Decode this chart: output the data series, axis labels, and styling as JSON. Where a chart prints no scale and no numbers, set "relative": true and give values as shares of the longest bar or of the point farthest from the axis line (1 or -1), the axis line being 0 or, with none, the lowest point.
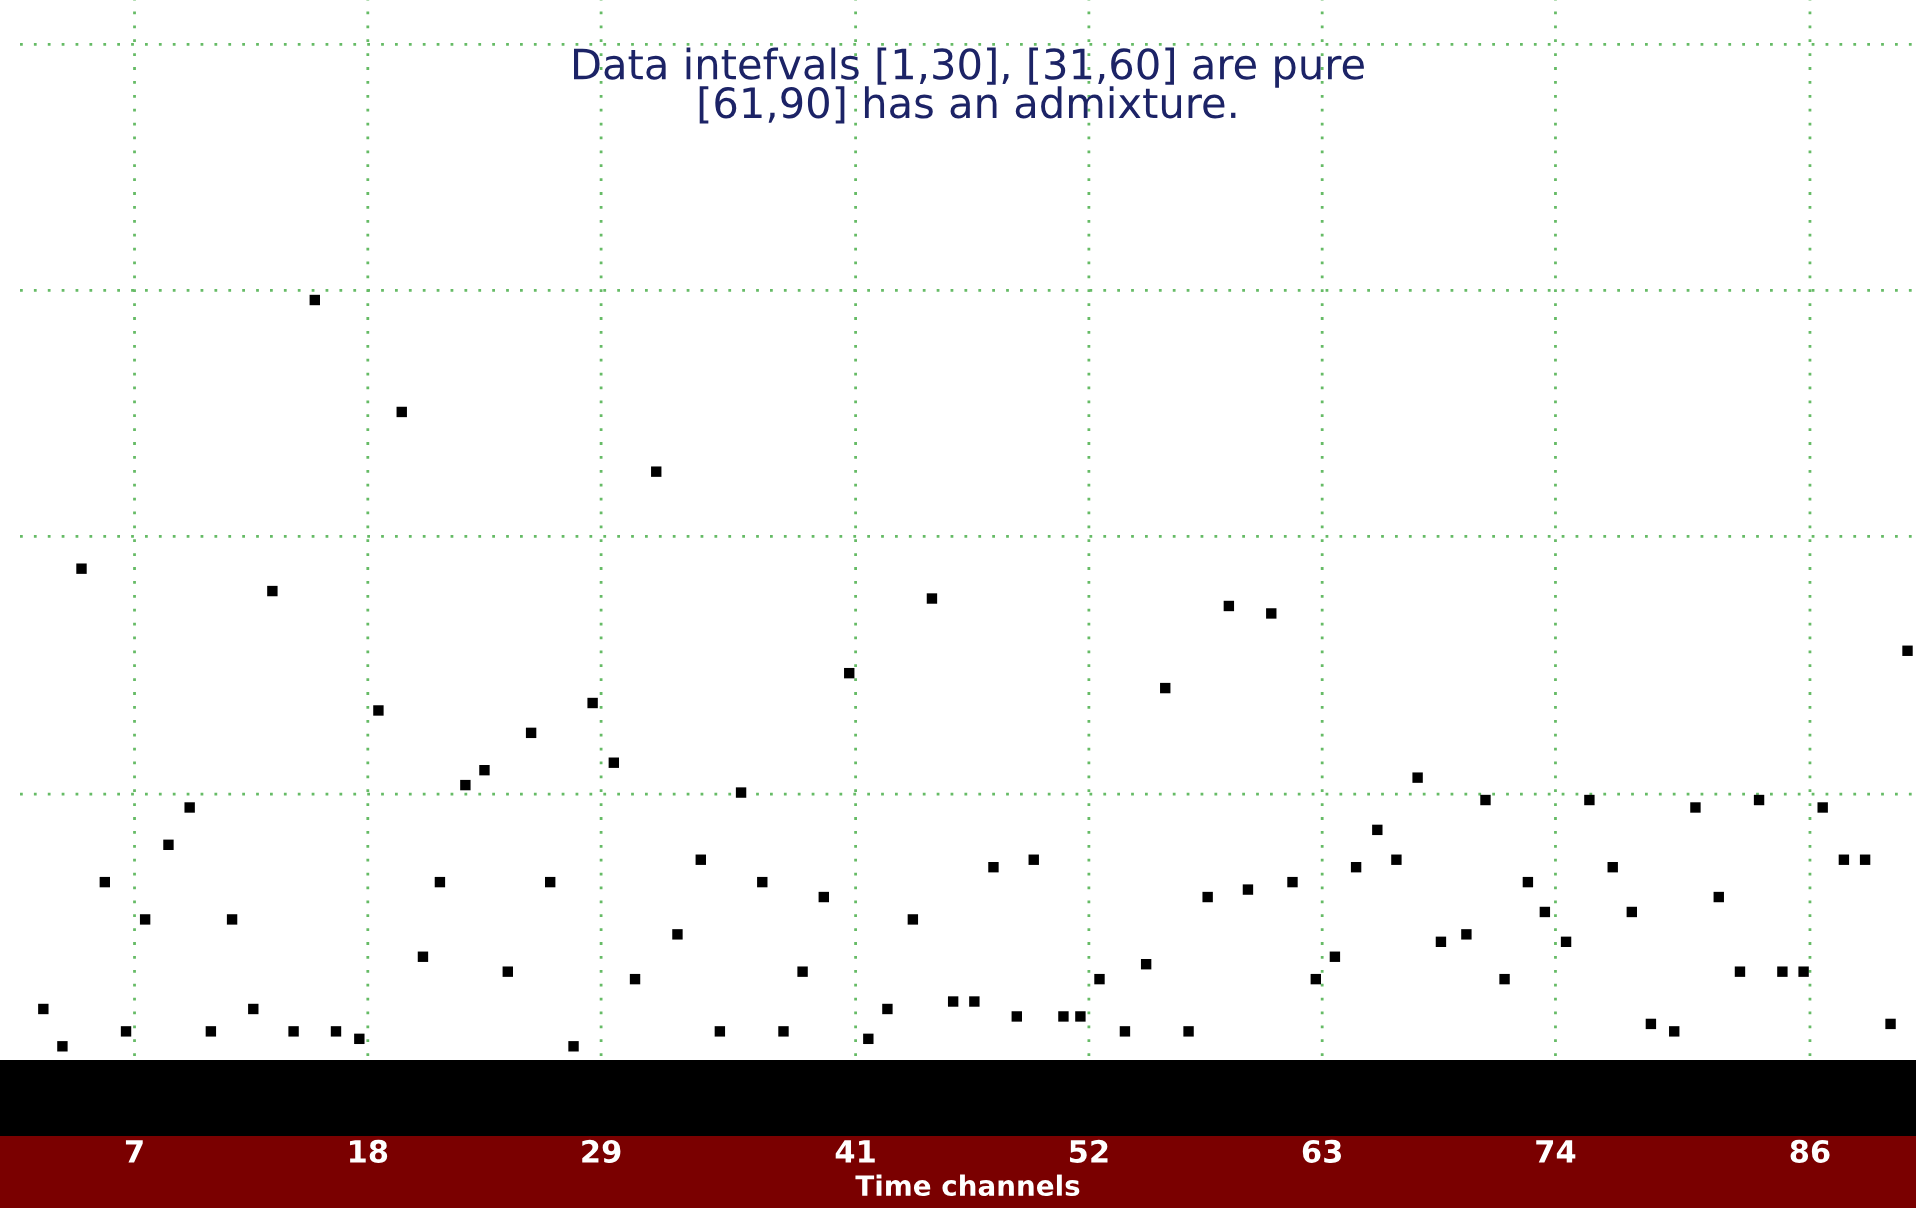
{
  "chart_data": {
    "type": "scatter",
    "title": "Data intefvals [1,30], [31,60] are pure\n[61,90] has an admixture.",
    "xlabel": "Time channels",
    "relative": true,
    "marker": "square",
    "grid": true,
    "xlim": [
      1.6,
      91.0
    ],
    "xticks": [
      7,
      18,
      29,
      41,
      52,
      63,
      74,
      86
    ],
    "x": [
      2.7,
      3.6,
      4.5,
      5.6,
      6.6,
      7.5,
      8.6,
      9.6,
      10.6,
      11.6,
      12.6,
      13.5,
      14.5,
      15.5,
      16.5,
      17.6,
      18.5,
      19.6,
      20.6,
      21.4,
      22.6,
      23.5,
      24.6,
      25.7,
      26.6,
      27.7,
      28.6,
      29.6,
      30.6,
      31.6,
      32.6,
      33.7,
      34.6,
      35.6,
      36.6,
      37.6,
      38.5,
      39.5,
      40.7,
      41.6,
      42.5,
      43.7,
      44.6,
      45.6,
      46.6,
      47.5,
      48.6,
      49.4,
      50.8,
      51.6,
      52.5,
      53.7,
      54.7,
      55.6,
      56.7,
      57.6,
      58.6,
      59.5,
      60.6,
      61.6,
      62.7,
      63.6,
      64.6,
      65.6,
      66.5,
      67.5,
      68.6,
      69.8,
      70.7,
      71.6,
      72.7,
      73.5,
      74.5,
      75.6,
      76.7,
      77.6,
      78.5,
      79.6,
      80.6,
      81.7,
      82.7,
      83.6,
      84.7,
      85.7,
      86.6,
      87.6,
      88.6,
      89.8,
      90.6
    ],
    "series": [
      {
        "color": "#000000",
        "values": [
          0.05,
          0.0,
          0.64,
          0.22,
          0.02,
          0.17,
          0.27,
          0.32,
          0.02,
          0.17,
          0.05,
          0.61,
          0.02,
          1.0,
          0.02,
          0.01,
          0.45,
          0.85,
          0.12,
          0.22,
          0.35,
          0.37,
          0.1,
          0.42,
          0.22,
          0.0,
          0.46,
          0.38,
          0.09,
          0.77,
          0.15,
          0.25,
          0.02,
          0.34,
          0.22,
          0.02,
          0.1,
          0.2,
          0.5,
          0.01,
          0.05,
          0.17,
          0.6,
          0.06,
          0.06,
          0.24,
          0.04,
          0.25,
          0.04,
          0.04,
          0.09,
          0.02,
          0.11,
          0.48,
          0.02,
          0.2,
          0.59,
          0.21,
          0.58,
          0.22,
          0.09,
          0.12,
          0.24,
          0.29,
          0.25,
          0.36,
          0.14,
          0.15,
          0.33,
          0.09,
          0.22,
          0.18,
          0.14,
          0.33,
          0.24,
          0.18,
          0.03,
          0.02,
          0.32,
          0.2,
          0.1,
          0.33,
          0.1,
          0.1,
          0.32,
          0.25,
          0.25,
          0.03,
          0.53
        ]
      }
    ]
  }
}
